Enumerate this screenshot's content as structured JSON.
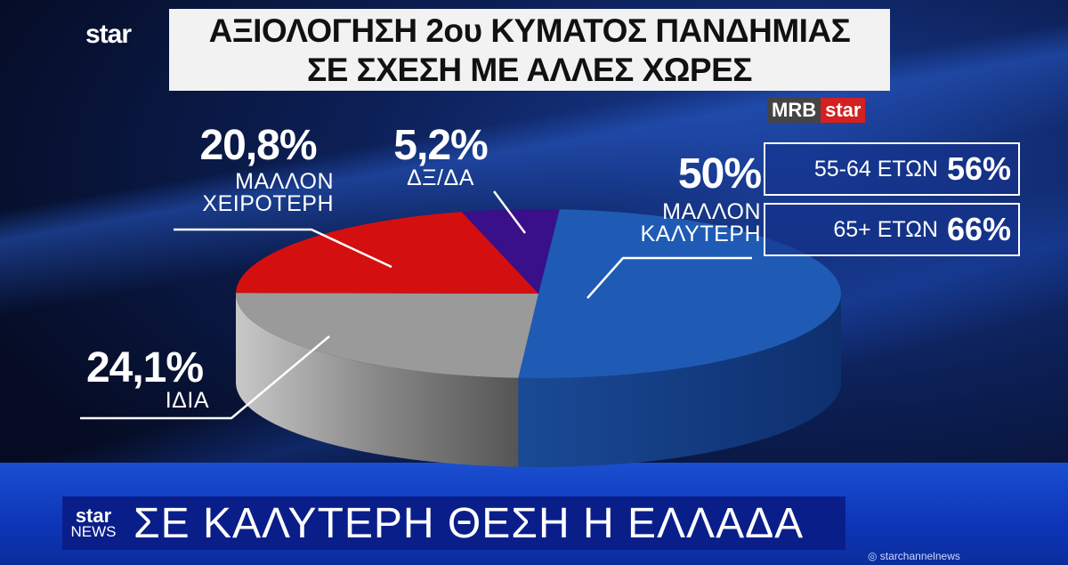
{
  "header": {
    "channel_logo": "star",
    "title_line1": "ΑΞΙΟΛΟΓΗΣΗ 2ου ΚΥΜΑΤΟΣ ΠΑΝΔΗΜΙΑΣ",
    "title_line2": "ΣΕ ΣΧΕΣΗ ΜΕ ΑΛΛΕΣ ΧΩΡΕΣ",
    "source_a": "MRB",
    "source_b": "star"
  },
  "chart_data": {
    "type": "pie",
    "title": "ΑΞΙΟΛΟΓΗΣΗ 2ου ΚΥΜΑΤΟΣ ΠΑΝΔΗΜΙΑΣ ΣΕ ΣΧΕΣΗ ΜΕ ΑΛΛΕΣ ΧΩΡΕΣ",
    "style": "3d",
    "slices": [
      {
        "label": "ΜΑΛΛΟΝ ΚΑΛΥΤΕΡΗ",
        "value": 50,
        "display": "50%",
        "color": "#1f5bb5"
      },
      {
        "label": "ΙΔΙΑ",
        "value": 24.1,
        "display": "24,1%",
        "color": "#9a9a9a"
      },
      {
        "label": "ΜΑΛΛΟΝ ΧΕΙΡΟΤΕΡΗ",
        "value": 20.8,
        "display": "20,8%",
        "color": "#d40f0f"
      },
      {
        "label": "ΔΞ/ΔΑ",
        "value": 5.2,
        "display": "5,2%",
        "color": "#3a0f8a"
      }
    ],
    "annotations": [
      {
        "label": "55-64 ΕΤΩΝ",
        "value": "56%"
      },
      {
        "label": "65+ ΕΤΩΝ",
        "value": "66%"
      }
    ]
  },
  "ticker": {
    "logo_top": "star",
    "logo_bottom": "NEWS",
    "headline": "ΣΕ ΚΑΛΥΤΕΡΗ ΘΕΣΗ Η ΕΛΛΑΔΑ",
    "handle": "◎ starchannelnews"
  }
}
